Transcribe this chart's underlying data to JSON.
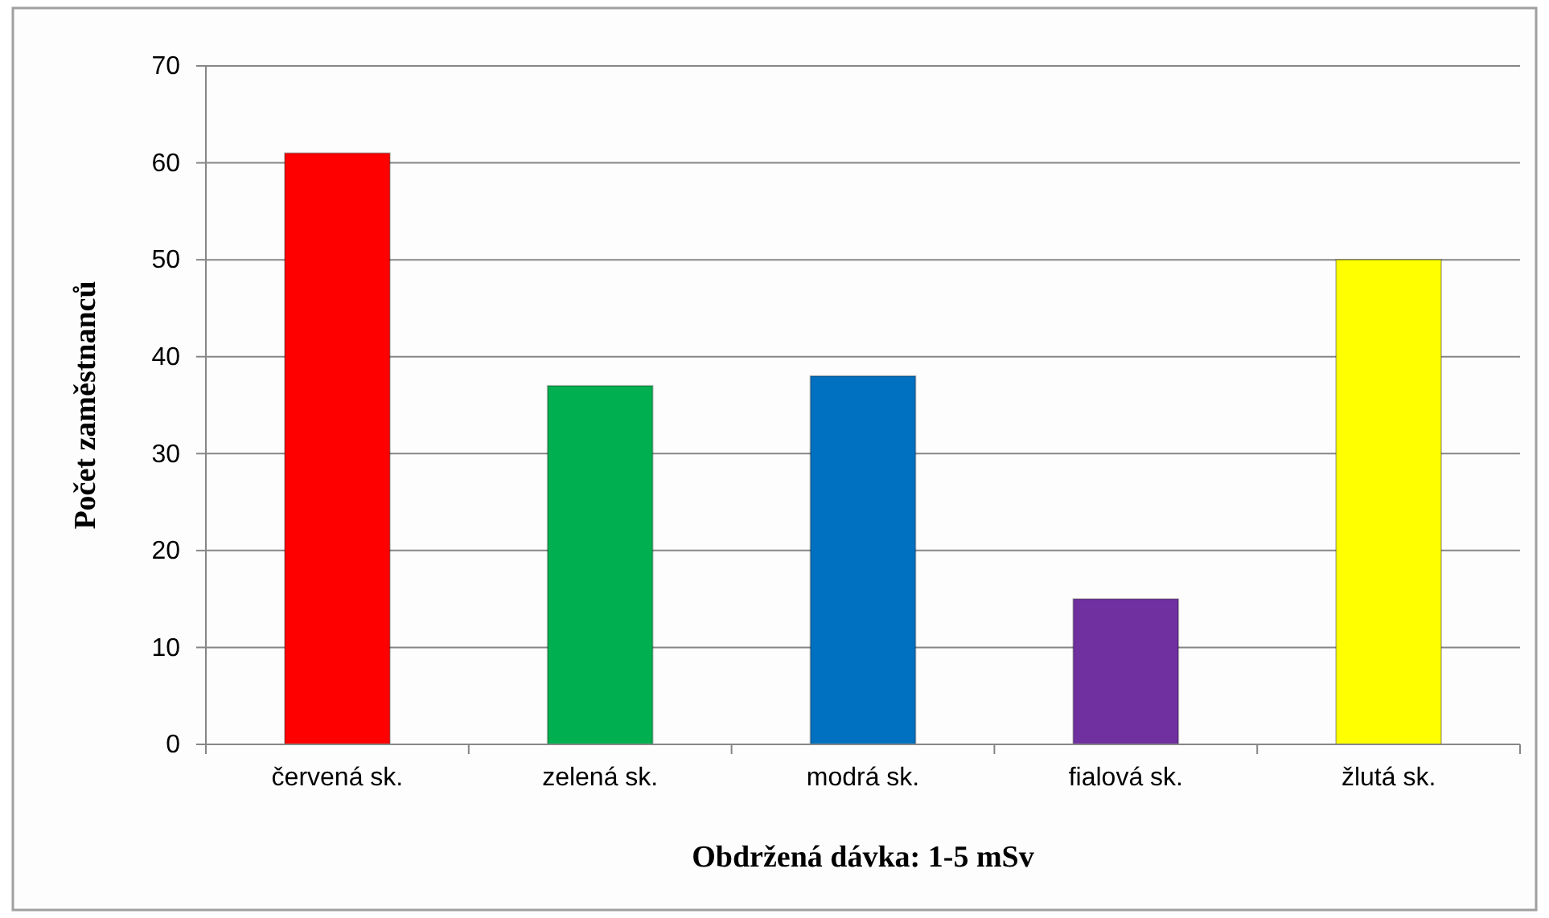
{
  "chart_data": {
    "type": "bar",
    "xlabel": "Obdržená dávka: 1-5 mSv",
    "ylabel": "Počet zaměstnanců",
    "categories": [
      "červená sk.",
      "zelená sk.",
      "modrá sk.",
      "fialová sk.",
      "žlutá sk."
    ],
    "values": [
      61,
      37,
      38,
      15,
      50
    ],
    "colors": [
      "#ff0000",
      "#00b050",
      "#0070c0",
      "#7030a0",
      "#ffff00"
    ],
    "ylim": [
      0,
      70
    ],
    "yticks": [
      0,
      10,
      20,
      30,
      40,
      50,
      60,
      70
    ],
    "grid": "y"
  }
}
